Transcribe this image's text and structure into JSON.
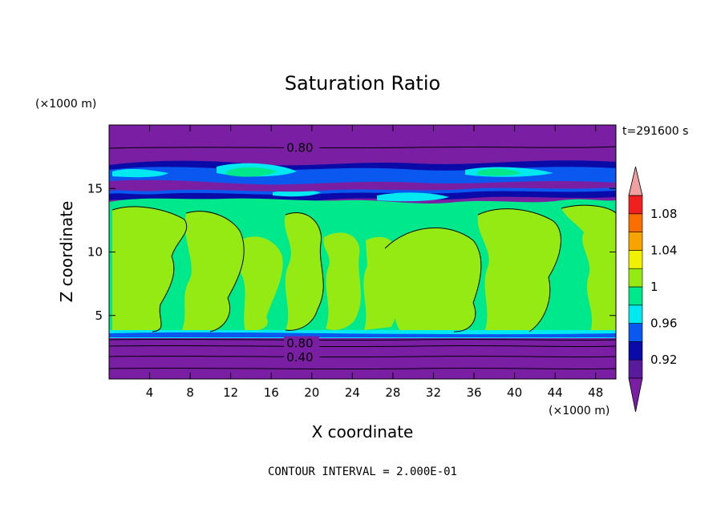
{
  "chart_data": {
    "type": "heatmap",
    "title": "Saturation Ratio",
    "xlabel": "X coordinate",
    "ylabel": "Z coordinate",
    "x_unit": "(×1000 m)",
    "y_unit": "(×1000 m)",
    "time_label": "t=291600 s",
    "footer": "CONTOUR INTERVAL = 2.000E-01",
    "xlim": [
      0,
      50
    ],
    "ylim": [
      0,
      20
    ],
    "x_ticks": [
      4,
      8,
      12,
      16,
      20,
      24,
      28,
      32,
      36,
      40,
      44,
      48
    ],
    "y_ticks": [
      5,
      10,
      15
    ],
    "contour_labels": [
      {
        "text": "0.80",
        "x": 17.5,
        "z": 18.2
      },
      {
        "text": "0.80",
        "x": 17.5,
        "z": 2.8
      },
      {
        "text": "0.40",
        "x": 17.5,
        "z": 1.7
      }
    ],
    "colorbar": {
      "levels": [
        0.9,
        0.92,
        0.94,
        0.96,
        0.98,
        1.0,
        1.02,
        1.04,
        1.06,
        1.08,
        1.1
      ],
      "tick_labels": [
        "0.92",
        "0.96",
        "1",
        "1.04",
        "1.08"
      ],
      "colors": [
        "#5a1a9c",
        "#0a0aa8",
        "#0b58f0",
        "#00e8f0",
        "#00e88c",
        "#96ea14",
        "#f0f000",
        "#f8a400",
        "#f86e00",
        "#f02020"
      ],
      "under_color": "#7a1ea4",
      "over_color": "#f0a0a0"
    }
  }
}
